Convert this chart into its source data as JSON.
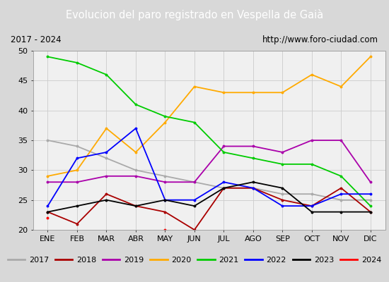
{
  "title": "Evolucion del paro registrado en Vespella de Gaià",
  "subtitle_left": "2017 - 2024",
  "subtitle_right": "http://www.foro-ciudad.com",
  "months": [
    "ENE",
    "FEB",
    "MAR",
    "ABR",
    "MAY",
    "JUN",
    "JUL",
    "AGO",
    "SEP",
    "OCT",
    "NOV",
    "DIC"
  ],
  "ylim": [
    20,
    50
  ],
  "yticks": [
    20,
    25,
    30,
    35,
    40,
    45,
    50
  ],
  "colors": {
    "2017": "#aaaaaa",
    "2018": "#aa0000",
    "2019": "#aa00aa",
    "2020": "#ffaa00",
    "2021": "#00cc00",
    "2022": "#0000ff",
    "2023": "#000000",
    "2024": "#ff0000"
  },
  "series": {
    "2017": [
      35,
      34,
      32,
      30,
      29,
      28,
      27,
      27,
      26,
      26,
      25,
      25
    ],
    "2018": [
      23,
      21,
      26,
      24,
      23,
      20,
      27,
      27,
      25,
      24,
      27,
      23
    ],
    "2019": [
      28,
      28,
      29,
      29,
      28,
      28,
      34,
      34,
      33,
      35,
      35,
      28
    ],
    "2020": [
      29,
      30,
      37,
      33,
      38,
      44,
      43,
      43,
      43,
      46,
      44,
      49
    ],
    "2021": [
      49,
      48,
      46,
      41,
      39,
      38,
      33,
      32,
      31,
      31,
      29,
      24
    ],
    "2022": [
      24,
      32,
      33,
      37,
      25,
      25,
      28,
      27,
      24,
      24,
      26,
      26
    ],
    "2023": [
      23,
      24,
      25,
      24,
      25,
      24,
      27,
      28,
      27,
      23,
      23,
      23
    ],
    "2024": [
      22,
      null,
      null,
      null,
      20,
      null,
      null,
      null,
      null,
      null,
      null,
      null
    ]
  },
  "title_bg": "#3a7abf",
  "subtitle_bg": "#ffffff",
  "plot_bg": "#f0f0f0",
  "fig_bg": "#d8d8d8",
  "legend_bg": "#ffffff",
  "grid_color": "#cccccc"
}
